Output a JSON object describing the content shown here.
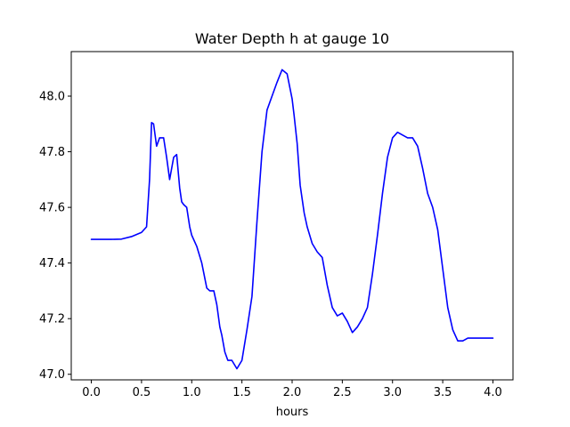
{
  "chart_data": {
    "type": "line",
    "title": "Water Depth h at gauge 10",
    "xlabel": "hours",
    "ylabel": "",
    "xlim": [
      -0.2,
      4.2
    ],
    "ylim": [
      46.98,
      48.16
    ],
    "xticks": [
      0.0,
      0.5,
      1.0,
      1.5,
      2.0,
      2.5,
      3.0,
      3.5,
      4.0
    ],
    "xtick_labels": [
      "0.0",
      "0.5",
      "1.0",
      "1.5",
      "2.0",
      "2.5",
      "3.0",
      "3.5",
      "4.0"
    ],
    "yticks": [
      47.0,
      47.2,
      47.4,
      47.6,
      47.8,
      48.0
    ],
    "ytick_labels": [
      "47.0",
      "47.2",
      "47.4",
      "47.6",
      "47.8",
      "48.0"
    ],
    "grid": false,
    "series": [
      {
        "color": "#0000ff",
        "x": [
          0.0,
          0.1,
          0.2,
          0.3,
          0.4,
          0.5,
          0.55,
          0.58,
          0.6,
          0.62,
          0.65,
          0.68,
          0.72,
          0.75,
          0.78,
          0.82,
          0.85,
          0.88,
          0.9,
          0.92,
          0.95,
          0.98,
          1.0,
          1.05,
          1.1,
          1.15,
          1.18,
          1.22,
          1.25,
          1.28,
          1.3,
          1.33,
          1.36,
          1.4,
          1.45,
          1.5,
          1.55,
          1.6,
          1.65,
          1.7,
          1.75,
          1.8,
          1.85,
          1.9,
          1.95,
          2.0,
          2.02,
          2.05,
          2.08,
          2.12,
          2.15,
          2.2,
          2.25,
          2.3,
          2.35,
          2.4,
          2.45,
          2.5,
          2.55,
          2.6,
          2.65,
          2.7,
          2.75,
          2.8,
          2.85,
          2.9,
          2.95,
          3.0,
          3.05,
          3.1,
          3.15,
          3.2,
          3.25,
          3.3,
          3.35,
          3.4,
          3.45,
          3.5,
          3.55,
          3.6,
          3.65,
          3.7,
          3.75,
          3.8,
          3.85,
          3.9,
          3.95,
          3.98,
          4.0
        ],
        "y": [
          47.485,
          47.485,
          47.485,
          47.486,
          47.495,
          47.51,
          47.53,
          47.7,
          47.905,
          47.9,
          47.82,
          47.85,
          47.85,
          47.78,
          47.7,
          47.78,
          47.79,
          47.67,
          47.62,
          47.61,
          47.6,
          47.53,
          47.5,
          47.46,
          47.4,
          47.31,
          47.3,
          47.3,
          47.25,
          47.17,
          47.14,
          47.08,
          47.05,
          47.05,
          47.02,
          47.05,
          47.16,
          47.28,
          47.55,
          47.8,
          47.95,
          48.0,
          48.05,
          48.095,
          48.08,
          47.99,
          47.93,
          47.83,
          47.68,
          47.58,
          47.53,
          47.47,
          47.44,
          47.42,
          47.32,
          47.24,
          47.21,
          47.22,
          47.19,
          47.15,
          47.17,
          47.2,
          47.24,
          47.36,
          47.5,
          47.65,
          47.78,
          47.85,
          47.87,
          47.86,
          47.85,
          47.85,
          47.82,
          47.74,
          47.65,
          47.6,
          47.52,
          47.38,
          47.24,
          47.16,
          47.12,
          47.12,
          47.13,
          47.13,
          47.13,
          47.13,
          47.13,
          47.13,
          47.13
        ]
      }
    ]
  }
}
